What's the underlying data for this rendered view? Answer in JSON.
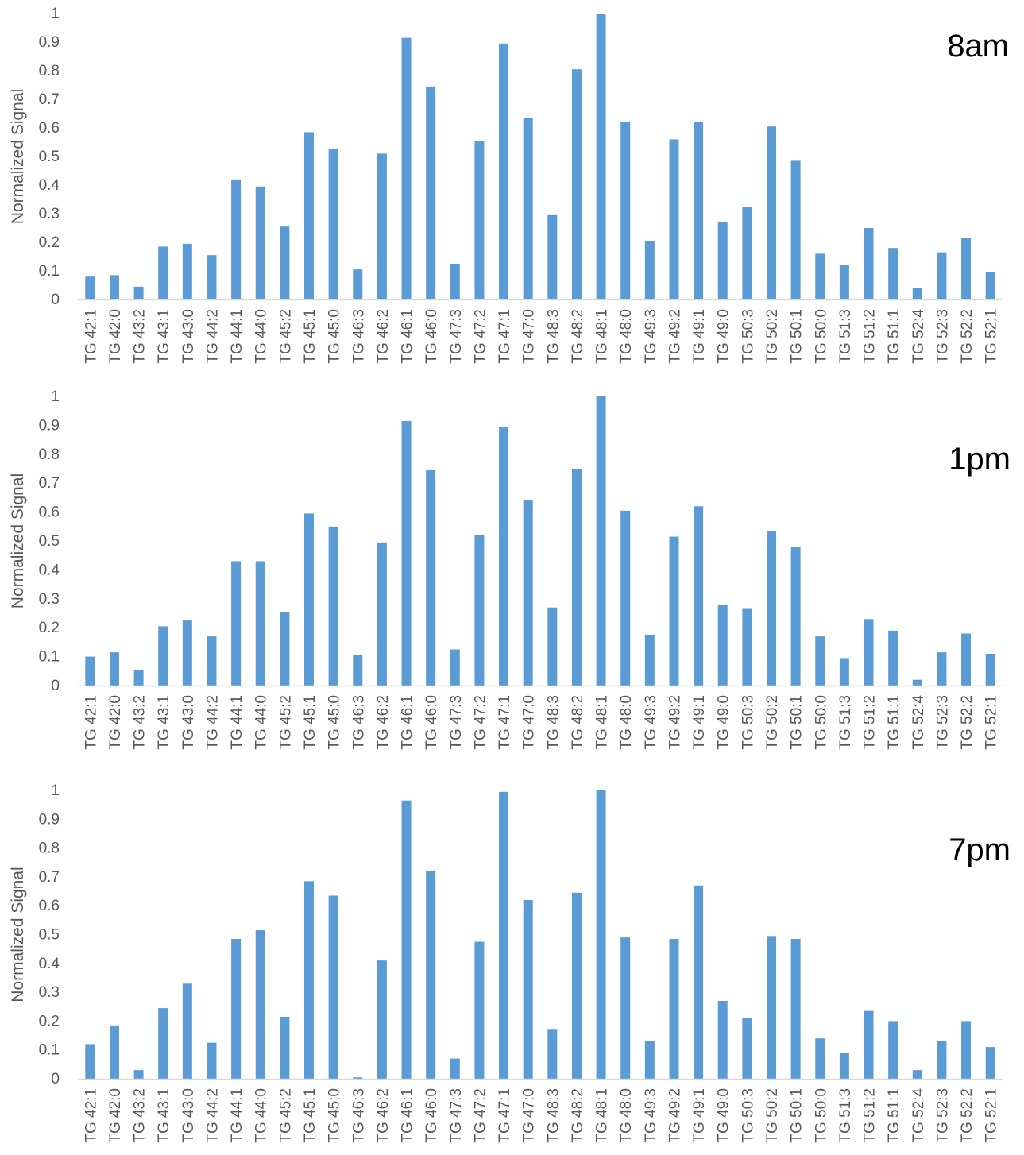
{
  "chart_data": [
    {
      "type": "bar",
      "title": "8am",
      "ylabel": "Normalized Signal",
      "xlabel": "",
      "ylim": [
        0,
        1
      ],
      "yticks": [
        "0",
        "0.1",
        "0.2",
        "0.3",
        "0.4",
        "0.5",
        "0.6",
        "0.7",
        "0.8",
        "0.9",
        "1"
      ],
      "grid": false,
      "bar_color": "#5b9bd5",
      "categories": [
        "TG 42:1",
        "TG 42:0",
        "TG 43:2",
        "TG 43:1",
        "TG 43:0",
        "TG 44:2",
        "TG 44:1",
        "TG 44:0",
        "TG 45:2",
        "TG 45:1",
        "TG 45:0",
        "TG 46:3",
        "TG 46:2",
        "TG 46:1",
        "TG 46:0",
        "TG 47:3",
        "TG 47:2",
        "TG 47:1",
        "TG 47:0",
        "TG 48:3",
        "TG 48:2",
        "TG 48:1",
        "TG 48:0",
        "TG 49:3",
        "TG 49:2",
        "TG 49:1",
        "TG 49:0",
        "TG 50:3",
        "TG 50:2",
        "TG 50:1",
        "TG 50:0",
        "TG 51:3",
        "TG 51:2",
        "TG 51:1",
        "TG 52:4",
        "TG 52:3",
        "TG 52:2",
        "TG 52:1"
      ],
      "values": [
        0.08,
        0.085,
        0.045,
        0.185,
        0.195,
        0.155,
        0.42,
        0.395,
        0.255,
        0.585,
        0.525,
        0.105,
        0.51,
        0.915,
        0.745,
        0.125,
        0.555,
        0.895,
        0.635,
        0.295,
        0.805,
        1.0,
        0.62,
        0.205,
        0.56,
        0.62,
        0.27,
        0.325,
        0.605,
        0.485,
        0.16,
        0.12,
        0.25,
        0.18,
        0.04,
        0.165,
        0.215,
        0.095
      ]
    },
    {
      "type": "bar",
      "title": "1pm",
      "ylabel": "Normalized Signal",
      "xlabel": "",
      "ylim": [
        0,
        1
      ],
      "yticks": [
        "0",
        "0.1",
        "0.2",
        "0.3",
        "0.4",
        "0.5",
        "0.6",
        "0.7",
        "0.8",
        "0.9",
        "1"
      ],
      "grid": false,
      "bar_color": "#5b9bd5",
      "categories": [
        "TG 42:1",
        "TG 42:0",
        "TG 43:2",
        "TG 43:1",
        "TG 43:0",
        "TG 44:2",
        "TG 44:1",
        "TG 44:0",
        "TG 45:2",
        "TG 45:1",
        "TG 45:0",
        "TG 46:3",
        "TG 46:2",
        "TG 46:1",
        "TG 46:0",
        "TG 47:3",
        "TG 47:2",
        "TG 47:1",
        "TG 47:0",
        "TG 48:3",
        "TG 48:2",
        "TG 48:1",
        "TG 48:0",
        "TG 49:3",
        "TG 49:2",
        "TG 49:1",
        "TG 49:0",
        "TG 50:3",
        "TG 50:2",
        "TG 50:1",
        "TG 50:0",
        "TG 51:3",
        "TG 51:2",
        "TG 51:1",
        "TG 52:4",
        "TG 52:3",
        "TG 52:2",
        "TG 52:1"
      ],
      "values": [
        0.1,
        0.115,
        0.055,
        0.205,
        0.225,
        0.17,
        0.43,
        0.43,
        0.255,
        0.595,
        0.55,
        0.105,
        0.495,
        0.915,
        0.745,
        0.125,
        0.52,
        0.895,
        0.64,
        0.27,
        0.75,
        1.0,
        0.605,
        0.175,
        0.515,
        0.62,
        0.28,
        0.265,
        0.535,
        0.48,
        0.17,
        0.095,
        0.23,
        0.19,
        0.02,
        0.115,
        0.18,
        0.11
      ]
    },
    {
      "type": "bar",
      "title": "7pm",
      "ylabel": "Normalized Signal",
      "xlabel": "",
      "ylim": [
        0,
        1
      ],
      "yticks": [
        "0",
        "0.1",
        "0.2",
        "0.3",
        "0.4",
        "0.5",
        "0.6",
        "0.7",
        "0.8",
        "0.9",
        "1"
      ],
      "grid": false,
      "bar_color": "#5b9bd5",
      "categories": [
        "TG 42:1",
        "TG 42:0",
        "TG 43:2",
        "TG 43:1",
        "TG 43:0",
        "TG 44:2",
        "TG 44:1",
        "TG 44:0",
        "TG 45:2",
        "TG 45:1",
        "TG 45:0",
        "TG 46:3",
        "TG 46:2",
        "TG 46:1",
        "TG 46:0",
        "TG 47:3",
        "TG 47:2",
        "TG 47:1",
        "TG 47:0",
        "TG 48:3",
        "TG 48:2",
        "TG 48:1",
        "TG 48:0",
        "TG 49:3",
        "TG 49:2",
        "TG 49:1",
        "TG 49:0",
        "TG 50:3",
        "TG 50:2",
        "TG 50:1",
        "TG 50:0",
        "TG 51:3",
        "TG 51:2",
        "TG 51:1",
        "TG 52:4",
        "TG 52:3",
        "TG 52:2",
        "TG 52:1"
      ],
      "values": [
        0.12,
        0.185,
        0.03,
        0.245,
        0.33,
        0.125,
        0.485,
        0.515,
        0.215,
        0.685,
        0.635,
        0.005,
        0.41,
        0.965,
        0.72,
        0.07,
        0.475,
        0.995,
        0.62,
        0.17,
        0.645,
        1.0,
        0.49,
        0.13,
        0.485,
        0.67,
        0.27,
        0.21,
        0.495,
        0.485,
        0.14,
        0.09,
        0.235,
        0.2,
        0.03,
        0.13,
        0.2,
        0.11
      ]
    }
  ]
}
